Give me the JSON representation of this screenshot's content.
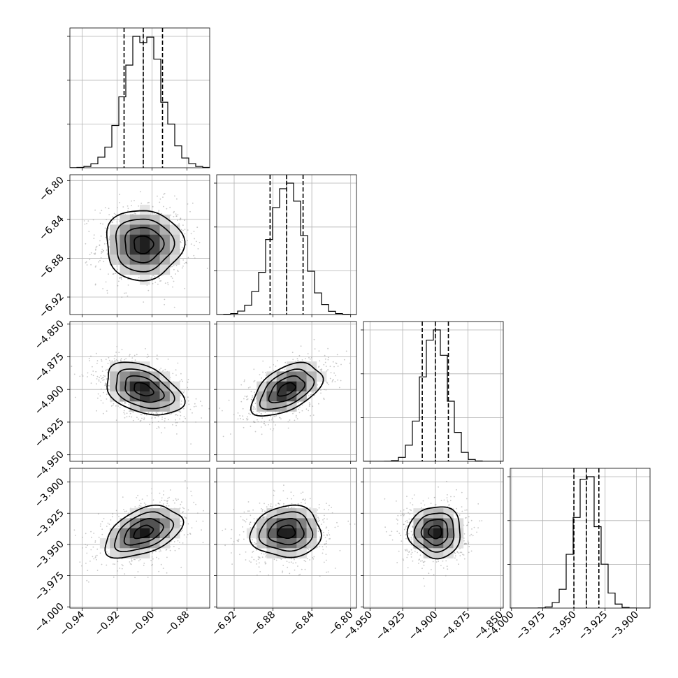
{
  "chart_data": {
    "type": "corner",
    "parameters": [
      {
        "mean": -0.905,
        "sigma": 0.0105,
        "quantiles": [
          -0.916,
          -0.905,
          -0.894
        ],
        "range": [
          -0.947,
          -0.867
        ],
        "ticks": [
          -0.94,
          -0.92,
          -0.9,
          -0.88
        ],
        "tick_labels": [
          "−0.94",
          "−0.92",
          "−0.90",
          "−0.88"
        ]
      },
      {
        "mean": -6.866,
        "sigma": 0.0172,
        "quantiles": [
          -6.883,
          -6.866,
          -6.849
        ],
        "range": [
          -6.938,
          -6.794
        ],
        "ticks": [
          -6.92,
          -6.88,
          -6.84,
          -6.8
        ],
        "tick_labels": [
          "−6.92",
          "−6.88",
          "−6.84",
          "−6.80"
        ]
      },
      {
        "mean": -4.9,
        "sigma": 0.0096,
        "quantiles": [
          -4.91,
          -4.9,
          -4.89
        ],
        "range": [
          -4.955,
          -4.848
        ],
        "ticks": [
          -4.95,
          -4.925,
          -4.9,
          -4.875,
          -4.85
        ],
        "tick_labels": [
          "−4.950",
          "−4.925",
          "−4.900",
          "−4.875",
          "−4.850"
        ]
      },
      {
        "mean": -3.94,
        "sigma": 0.0098,
        "quantiles": [
          -3.95,
          -3.94,
          -3.93
        ],
        "range": [
          -4.001,
          -3.889
        ],
        "ticks": [
          -4.0,
          -3.975,
          -3.95,
          -3.925,
          -3.9
        ],
        "tick_labels": [
          "−4.000",
          "−3.975",
          "−3.950",
          "−3.925",
          "−3.900"
        ]
      }
    ],
    "correlations": [
      {
        "row": 1,
        "col": 0,
        "rho": 0.0
      },
      {
        "row": 2,
        "col": 0,
        "rho": -0.4
      },
      {
        "row": 2,
        "col": 1,
        "rho": 0.5
      },
      {
        "row": 3,
        "col": 0,
        "rho": 0.45
      },
      {
        "row": 3,
        "col": 1,
        "rho": 0.05
      },
      {
        "row": 3,
        "col": 2,
        "rho": 0.0
      }
    ],
    "histogram_bins": 20,
    "contour_levels_sigma": [
      0.5,
      1.0,
      1.5,
      2.0
    ],
    "grid": true
  }
}
